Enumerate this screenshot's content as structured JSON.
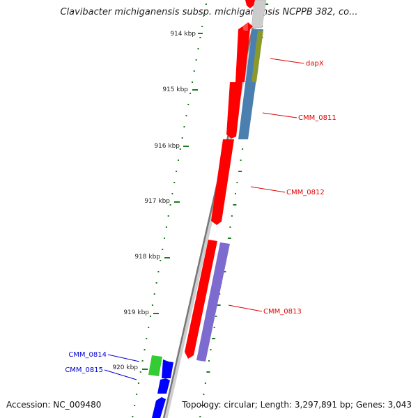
{
  "title": "Clavibacter michiganensis subsp. michiganensis NCPPB 382, co...",
  "footer": {
    "accession": "Accession: NC_009480",
    "summary": "Topology: circular; Length: 3,297,891 bp; Genes: 3,043"
  },
  "colors": {
    "background": "#ffffff",
    "backbone": "#888888",
    "tick": "#1d7a1d",
    "forward_gene": "#ff0000",
    "reverse_gene": "#0000ff",
    "steelblue_gene": "#4a7fb0",
    "olive_gene": "#8a9a2a",
    "purple_gene": "#7d6bd0",
    "green_gene": "#33cc33",
    "grey_gene": "#cccccc",
    "red_label": "#dd0000",
    "blue_label": "#0000cc"
  },
  "scale": {
    "unit": "kbp",
    "ticks": [
      {
        "label": "914 kbp"
      },
      {
        "label": "915 kbp"
      },
      {
        "label": "916 kbp"
      },
      {
        "label": "917 kbp"
      },
      {
        "label": "918 kbp"
      },
      {
        "label": "919 kbp"
      },
      {
        "label": "920 kbp"
      }
    ]
  },
  "genes": [
    {
      "name": "dapX",
      "color": "#ff0000"
    },
    {
      "name": "CMM_0811",
      "color": "#dd0000"
    },
    {
      "name": "CMM_0812",
      "color": "#dd0000"
    },
    {
      "name": "CMM_0813",
      "color": "#dd0000"
    },
    {
      "name": "CMM_0814",
      "color": "#0000cc"
    },
    {
      "name": "CMM_0815",
      "color": "#0000cc"
    }
  ]
}
